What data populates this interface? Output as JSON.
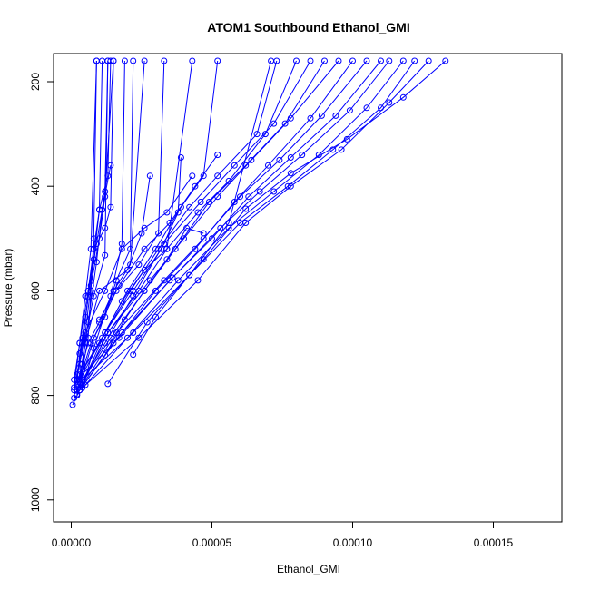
{
  "chart_data": {
    "type": "line",
    "title": "ATOM1 Southbound Ethanol_GMI",
    "xlabel": "Ethanol_GMI",
    "ylabel": "Pressure (mbar)",
    "xlim": [
      0,
      0.000175
    ],
    "ylim": [
      1045,
      150
    ],
    "y_reversed": true,
    "grid": false,
    "x_ticks": [
      0,
      5e-05,
      0.0001,
      0.00015
    ],
    "x_tick_labels": [
      "0.00000",
      "0.00005",
      "0.00010",
      "0.00015"
    ],
    "y_ticks": [
      200,
      400,
      600,
      800,
      1000
    ],
    "y_tick_labels": [
      "200",
      "400",
      "600",
      "800",
      "1000"
    ],
    "color": "#0000ff",
    "series": [
      {
        "x": [
          5e-07,
          3e-06,
          4e-06,
          6e-06,
          7e-06,
          8e-06,
          9e-06
        ],
        "y": [
          818,
          790,
          750,
          690,
          600,
          500,
          160
        ]
      },
      {
        "x": [
          1e-06,
          2e-06,
          4e-06,
          6e-06,
          9e-06,
          1.2e-05,
          1.3e-05
        ],
        "y": [
          805,
          760,
          700,
          612,
          510,
          410,
          160
        ]
      },
      {
        "x": [
          1e-06,
          3e-06,
          5e-06,
          7e-06,
          1e-05,
          1.2e-05,
          1.5e-05
        ],
        "y": [
          790,
          740,
          680,
          590,
          500,
          420,
          160
        ]
      },
      {
        "x": [
          2e-06,
          3e-06,
          5e-06,
          8e-06,
          1e-05,
          1.1e-05
        ],
        "y": [
          780,
          720,
          650,
          540,
          445,
          160
        ]
      },
      {
        "x": [
          1e-06,
          3e-06,
          5e-06,
          7e-06,
          9e-06
        ],
        "y": [
          770,
          700,
          610,
          520,
          160
        ]
      },
      {
        "x": [
          2e-06,
          4e-06,
          6e-06,
          9e-06,
          1.1e-05,
          1.4e-05
        ],
        "y": [
          798,
          740,
          660,
          545,
          445,
          360
        ]
      },
      {
        "x": [
          1e-06,
          3e-06,
          6e-06,
          8e-06,
          1.2e-05,
          1.4e-05,
          1.5e-05
        ],
        "y": [
          785,
          700,
          600,
          520,
          480,
          440,
          160
        ]
      },
      {
        "x": [
          2e-06,
          4e-06,
          6e-06,
          8e-06,
          1e-05,
          1.3e-05,
          1.4e-05
        ],
        "y": [
          770,
          690,
          612,
          520,
          445,
          380,
          160
        ]
      },
      {
        "x": [
          3e-06,
          5e-06,
          8e-06,
          1.2e-05,
          1.3e-05
        ],
        "y": [
          775,
          690,
          610,
          532,
          160
        ]
      },
      {
        "x": [
          4e-06,
          8e-06,
          1.4e-05,
          1.8e-05,
          1.9e-05
        ],
        "y": [
          785,
          710,
          610,
          510,
          160
        ]
      },
      {
        "x": [
          3e-06,
          7e-06,
          1.2e-05,
          1.6e-05,
          2.1e-05,
          2.2e-05
        ],
        "y": [
          770,
          700,
          650,
          580,
          520,
          160
        ]
      },
      {
        "x": [
          2e-06,
          6e-06,
          1e-05,
          1.5e-05,
          2.1e-05,
          2.6e-05
        ],
        "y": [
          780,
          700,
          660,
          600,
          550,
          160
        ]
      },
      {
        "x": [
          2e-06,
          8e-06,
          1.6e-05,
          2.4e-05,
          3.1e-05,
          3.3e-05
        ],
        "y": [
          800,
          690,
          600,
          550,
          490,
          160
        ]
      },
      {
        "x": [
          3e-06,
          1.2e-05,
          2.2e-05,
          3.2e-05,
          3.8e-05,
          3.9e-05
        ],
        "y": [
          760,
          680,
          600,
          520,
          450,
          345
        ]
      },
      {
        "x": [
          2e-06,
          1e-05,
          1.8e-05,
          2.6e-05,
          3.4e-05,
          4.3e-05
        ],
        "y": [
          770,
          700,
          620,
          560,
          520,
          160
        ]
      },
      {
        "x": [
          3e-06,
          1.2e-05,
          2e-05,
          3e-05,
          3.9e-05,
          4.7e-05,
          5.2e-05
        ],
        "y": [
          790,
          680,
          600,
          520,
          440,
          380,
          160
        ]
      },
      {
        "x": [
          2e-06,
          1.1e-05,
          2.1e-05,
          3.1e-05,
          4.2e-05,
          5.2e-05,
          6.6e-05,
          7.3e-05
        ],
        "y": [
          780,
          690,
          600,
          520,
          440,
          380,
          300,
          160
        ]
      },
      {
        "x": [
          3e-06,
          1.3e-05,
          2.4e-05,
          3.4e-05,
          4.5e-05,
          5.6e-05,
          6.9e-05,
          8e-05
        ],
        "y": [
          790,
          680,
          600,
          520,
          450,
          390,
          300,
          160
        ]
      },
      {
        "x": [
          4e-06,
          1.2e-05,
          2.2e-05,
          3.3e-05,
          4.6e-05,
          5.8e-05,
          7.2e-05,
          8.5e-05
        ],
        "y": [
          770,
          700,
          610,
          510,
          430,
          360,
          280,
          160
        ]
      },
      {
        "x": [
          3e-06,
          1.4e-05,
          2.6e-05,
          3.7e-05,
          4.9e-05,
          6.2e-05,
          7.6e-05,
          9e-05
        ],
        "y": [
          780,
          690,
          600,
          520,
          430,
          360,
          280,
          160
        ]
      },
      {
        "x": [
          2e-06,
          1.3e-05,
          2.8e-05,
          4e-05,
          5.2e-05,
          6.4e-05,
          7.8e-05,
          9.5e-05
        ],
        "y": [
          800,
          680,
          580,
          500,
          420,
          350,
          270,
          160
        ]
      },
      {
        "x": [
          3e-06,
          1.5e-05,
          3e-05,
          4.4e-05,
          5.8e-05,
          7e-05,
          8.5e-05,
          0.0001
        ],
        "y": [
          790,
          700,
          600,
          520,
          430,
          360,
          270,
          160
        ]
      },
      {
        "x": [
          4e-06,
          1.6e-05,
          3.3e-05,
          4.7e-05,
          6e-05,
          7.4e-05,
          8.9e-05,
          0.000105
        ],
        "y": [
          780,
          680,
          580,
          500,
          420,
          350,
          265,
          160
        ]
      },
      {
        "x": [
          2e-06,
          1.7e-05,
          3.5e-05,
          5e-05,
          6.3e-05,
          7.8e-05,
          9.4e-05,
          0.00011
        ],
        "y": [
          770,
          690,
          580,
          500,
          420,
          345,
          265,
          160
        ]
      },
      {
        "x": [
          3e-06,
          1.8e-05,
          3.6e-05,
          5.3e-05,
          6.7e-05,
          8.2e-05,
          9.9e-05,
          0.000113
        ],
        "y": [
          790,
          680,
          575,
          480,
          410,
          340,
          255,
          160
        ]
      },
      {
        "x": [
          5e-06,
          2e-05,
          3.8e-05,
          5.6e-05,
          7.2e-05,
          8.8e-05,
          0.000105,
          0.000118
        ],
        "y": [
          780,
          690,
          580,
          480,
          410,
          340,
          250,
          160
        ]
      },
      {
        "x": [
          4e-06,
          2.2e-05,
          4.2e-05,
          6e-05,
          7.7e-05,
          9.3e-05,
          0.00011,
          0.000122
        ],
        "y": [
          770,
          680,
          570,
          470,
          400,
          330,
          250,
          160
        ]
      },
      {
        "x": [
          3e-06,
          2.4e-05,
          4.5e-05,
          6.2e-05,
          7.8e-05,
          9.6e-05,
          0.000113,
          0.000127
        ],
        "y": [
          790,
          690,
          580,
          470,
          400,
          330,
          240,
          160
        ]
      },
      {
        "x": [
          1.3e-05,
          2.7e-05,
          4.7e-05,
          6.2e-05,
          7.8e-05,
          9.8e-05,
          0.000118,
          0.000133
        ],
        "y": [
          778,
          660,
          540,
          443,
          375,
          310,
          230,
          160
        ]
      },
      {
        "x": [
          2.2e-05,
          3e-05,
          4.2e-05,
          5.6e-05,
          7.1e-05
        ],
        "y": [
          722,
          650,
          570,
          470,
          160
        ]
      },
      {
        "x": [
          1.2e-05,
          1.9e-05,
          2.6e-05,
          3.4e-05,
          4.1e-05,
          4.7e-05
        ],
        "y": [
          723,
          655,
          600,
          540,
          480,
          490
        ]
      },
      {
        "x": [
          5e-06,
          1e-05,
          2e-05,
          2.5e-05,
          2.8e-05
        ],
        "y": [
          700,
          600,
          560,
          490,
          380
        ]
      },
      {
        "x": [
          4e-06,
          1.2e-05,
          1.8e-05,
          2.6e-05,
          3.4e-05,
          4.3e-05
        ],
        "y": [
          690,
          600,
          520,
          480,
          450,
          380
        ]
      },
      {
        "x": [
          1e-05,
          1.7e-05,
          2.6e-05,
          3.5e-05,
          4.4e-05,
          5.2e-05
        ],
        "y": [
          655,
          590,
          520,
          470,
          400,
          340
        ]
      }
    ]
  }
}
